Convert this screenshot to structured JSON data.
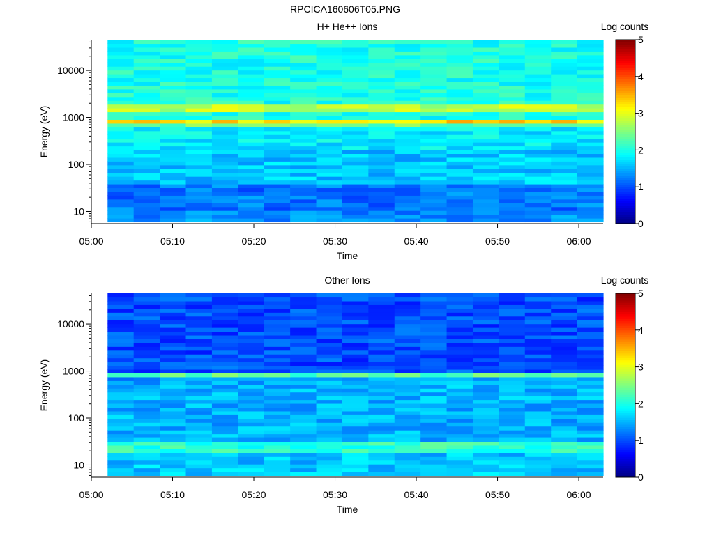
{
  "page_title": "RPCICA160606T05.PNG",
  "chart_data": [
    {
      "type": "heatmap",
      "title": "H+ He++ Ions",
      "xlabel": "Time",
      "ylabel": "Energy (eV)",
      "x_ticks": [
        "05:00",
        "05:10",
        "05:20",
        "05:30",
        "05:40",
        "05:50",
        "06:00"
      ],
      "x_range": [
        "05:00",
        "06:03"
      ],
      "data_start": "05:02",
      "y_scale": "log",
      "y_ticks": [
        {
          "value": 10,
          "label": "10"
        },
        {
          "value": 100,
          "label": "100"
        },
        {
          "value": 1000,
          "label": "1000"
        },
        {
          "value": 10000,
          "label": "10000"
        }
      ],
      "y_range": [
        5.5,
        45000
      ],
      "colorbar": {
        "label": "Log counts",
        "range": [
          0,
          5
        ],
        "ticks": [
          "0",
          "1",
          "2",
          "3",
          "4",
          "5"
        ],
        "colormap": "jet"
      },
      "approx_band_levels": [
        {
          "energy_ev_range": [
            6,
            10
          ],
          "log_counts": 1.3
        },
        {
          "energy_ev_range": [
            10,
            40
          ],
          "log_counts": 1.2
        },
        {
          "energy_ev_range": [
            40,
            200
          ],
          "log_counts": 1.6
        },
        {
          "energy_ev_range": [
            200,
            600
          ],
          "log_counts": 1.8
        },
        {
          "energy_ev_range": [
            600,
            700
          ],
          "log_counts": 2.4
        },
        {
          "energy_ev_range": [
            700,
            850
          ],
          "log_counts": 3.3
        },
        {
          "energy_ev_range": [
            850,
            1300
          ],
          "log_counts": 2.0
        },
        {
          "energy_ev_range": [
            1300,
            1800
          ],
          "log_counts": 2.8
        },
        {
          "energy_ev_range": [
            1800,
            45000
          ],
          "log_counts": 2.0
        }
      ]
    },
    {
      "type": "heatmap",
      "title": "Other Ions",
      "xlabel": "Time",
      "ylabel": "Energy (eV)",
      "x_ticks": [
        "05:00",
        "05:10",
        "05:20",
        "05:30",
        "05:40",
        "05:50",
        "06:00"
      ],
      "x_range": [
        "05:00",
        "06:03"
      ],
      "data_start": "05:02",
      "y_scale": "log",
      "y_ticks": [
        {
          "value": 10,
          "label": "10"
        },
        {
          "value": 100,
          "label": "100"
        },
        {
          "value": 1000,
          "label": "1000"
        },
        {
          "value": 10000,
          "label": "10000"
        }
      ],
      "y_range": [
        5.5,
        45000
      ],
      "colorbar": {
        "label": "Log counts",
        "range": [
          0,
          5
        ],
        "ticks": [
          "0",
          "1",
          "2",
          "3",
          "4",
          "5"
        ],
        "colormap": "jet"
      },
      "approx_band_levels": [
        {
          "energy_ev_range": [
            6,
            20
          ],
          "log_counts": 1.6
        },
        {
          "energy_ev_range": [
            20,
            35
          ],
          "log_counts": 2.1
        },
        {
          "energy_ev_range": [
            35,
            600
          ],
          "log_counts": 1.5
        },
        {
          "energy_ev_range": [
            600,
            700
          ],
          "log_counts": 1.4
        },
        {
          "energy_ev_range": [
            700,
            850
          ],
          "log_counts": 2.3
        },
        {
          "energy_ev_range": [
            850,
            45000
          ],
          "log_counts": 1.0
        }
      ]
    }
  ]
}
